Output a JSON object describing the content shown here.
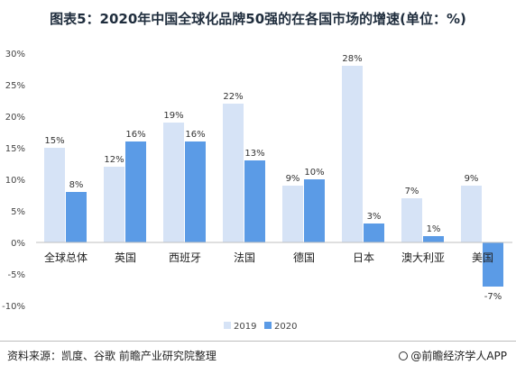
{
  "title": "图表5：2020年中国全球化品牌50强的在各国市场的增速(单位：%)",
  "source": "资料来源：凯度、谷歌 前瞻产业研究院整理",
  "brand": "@前瞻经济学人APP",
  "colors": {
    "s2019": "#d6e3f6",
    "s2020": "#5b9be6"
  },
  "chart_data": {
    "type": "bar",
    "categories": [
      "全球总体",
      "英国",
      "西班牙",
      "法国",
      "德国",
      "日本",
      "澳大利亚",
      "美国"
    ],
    "series": [
      {
        "name": "2019",
        "values": [
          15,
          12,
          19,
          22,
          9,
          28,
          7,
          9
        ]
      },
      {
        "name": "2020",
        "values": [
          8,
          16,
          16,
          13,
          10,
          3,
          1,
          -7
        ]
      }
    ],
    "ylim": [
      -10,
      30
    ],
    "yticks": [
      -10,
      -5,
      0,
      5,
      10,
      15,
      20,
      25,
      30
    ],
    "value_suffix": "%",
    "legend_position": "bottom-center",
    "grid": false
  }
}
